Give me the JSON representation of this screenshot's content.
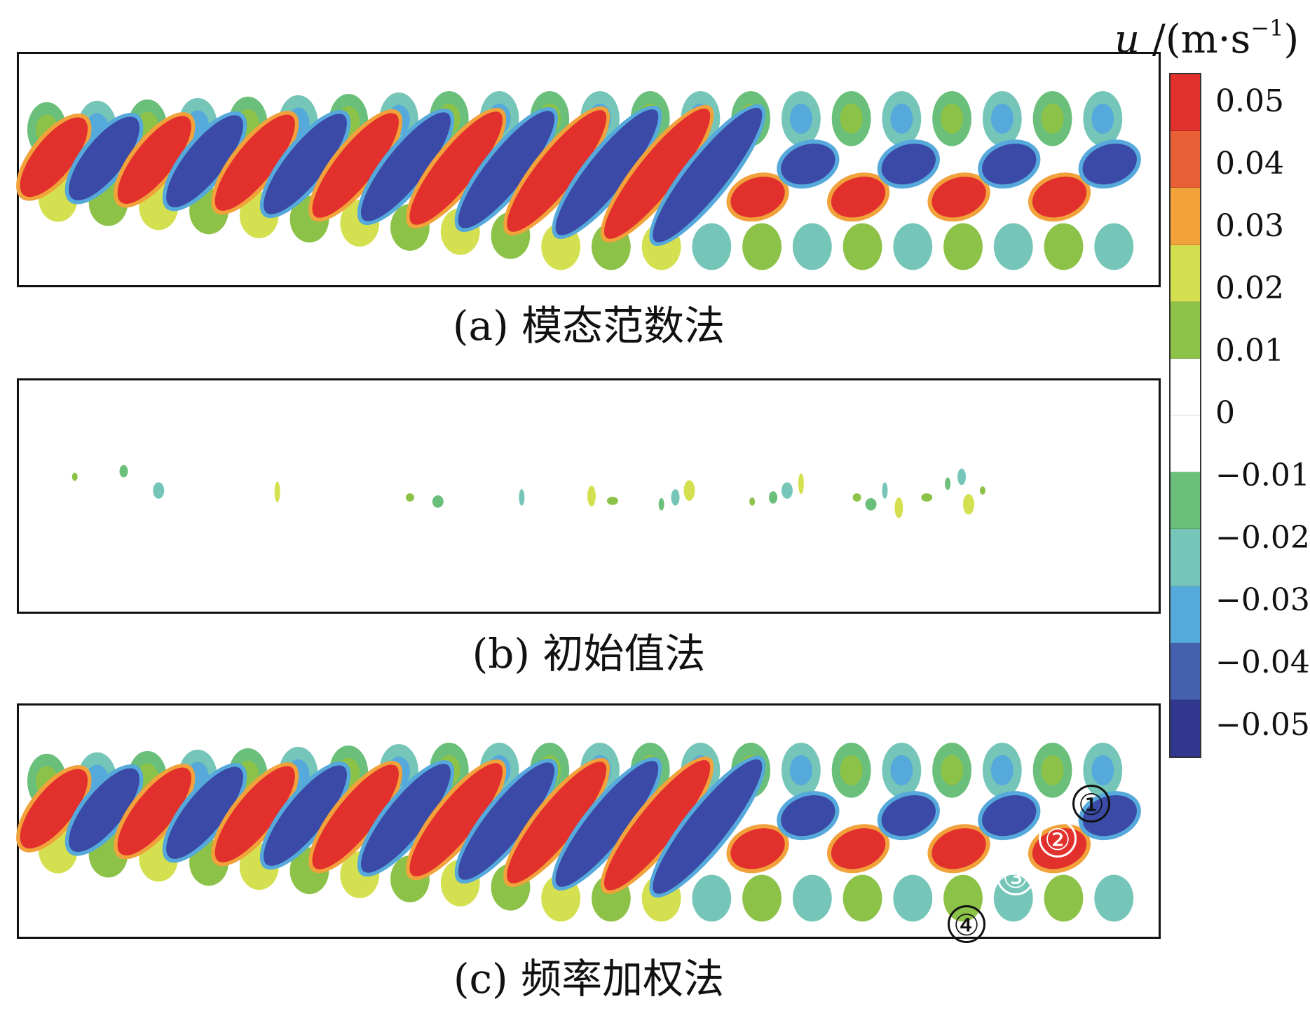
{
  "panels": [
    {
      "id": "a",
      "caption": "(a) 模态范数法"
    },
    {
      "id": "b",
      "caption": "(b) 初始值法"
    },
    {
      "id": "c",
      "caption": "(c) 频率加权法"
    }
  ],
  "colorbar": {
    "variable": "u",
    "unit": "/(m·s",
    "exponent": "−1",
    "unit_close": ")",
    "ticks": [
      "0.05",
      "0.04",
      "0.03",
      "0.02",
      "0.01",
      "0",
      "−0.01",
      "−0.02",
      "−0.03",
      "−0.04",
      "−0.05"
    ],
    "colors": [
      "#e2312c",
      "#ea6036",
      "#f2a23a",
      "#d4e050",
      "#8dc248",
      "#ffffff",
      "#ffffff",
      "#6abf7a",
      "#75c6b8",
      "#56a9db",
      "#4460ae",
      "#31368f"
    ]
  },
  "markers": [
    "①",
    "②",
    "③",
    "④"
  ]
}
